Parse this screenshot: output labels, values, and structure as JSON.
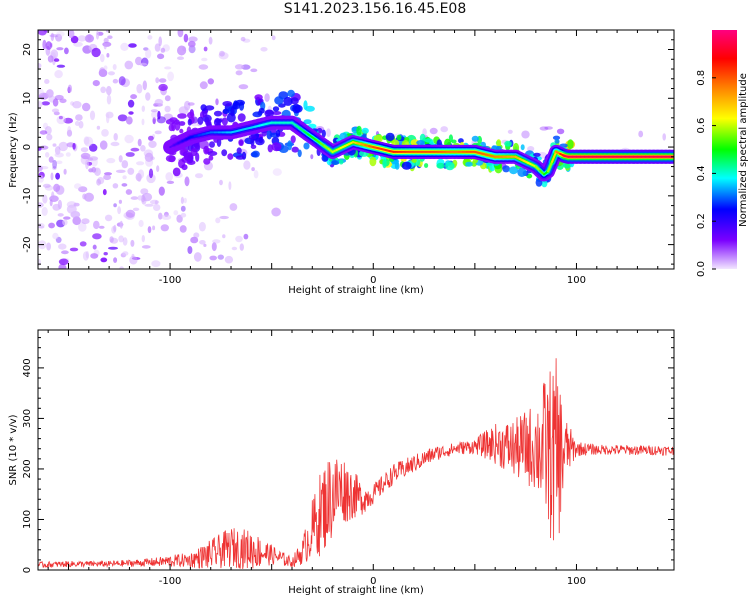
{
  "figure_title": "S141.2023.156.16.45.E08",
  "chart_data": [
    {
      "type": "heatmap",
      "panel": "top",
      "title": "",
      "xlabel": "Height of straight line (km)",
      "ylabel": "Frequency (Hz)",
      "xlim": [
        -165,
        148
      ],
      "ylim": [
        -25,
        24
      ],
      "x_ticks": [
        -100,
        0,
        100
      ],
      "x_tick_labels": [
        "-100",
        "0",
        "100"
      ],
      "y_ticks": [
        -20,
        -10,
        0,
        10,
        20
      ],
      "y_tick_labels": [
        "-20",
        "-10",
        "0",
        "10",
        "20"
      ],
      "colorbar": {
        "label": "Normalized spectral amplitude",
        "range": [
          0,
          1
        ],
        "ticks": [
          0.0,
          0.2,
          0.4,
          0.6,
          0.8
        ],
        "tick_labels": [
          "0.0",
          "0.2",
          "0.4",
          "0.6",
          "0.8"
        ],
        "colors": [
          "#f2e6ff",
          "#7b00ff",
          "#0000ff",
          "#00ffff",
          "#00ff00",
          "#ffff00",
          "#ff8000",
          "#ff0000",
          "#ff0080"
        ]
      },
      "ridge": {
        "name": "dominant frequency",
        "x": [
          -100,
          -90,
          -80,
          -70,
          -60,
          -50,
          -40,
          -30,
          -20,
          -10,
          0,
          10,
          20,
          30,
          40,
          50,
          60,
          70,
          80,
          85,
          90,
          95,
          100,
          110,
          120,
          130,
          140,
          148
        ],
        "y": [
          0,
          2,
          3,
          3,
          4,
          5,
          5,
          2,
          -1,
          1,
          0,
          -1,
          -1,
          -1,
          -1,
          -1,
          -2,
          -2,
          -4,
          -6,
          -1,
          -2,
          -2,
          -2,
          -2,
          -2,
          -2,
          -2
        ],
        "amplitude": [
          0.15,
          0.25,
          0.3,
          0.35,
          0.35,
          0.4,
          0.4,
          0.5,
          0.6,
          0.65,
          0.8,
          0.85,
          0.8,
          0.8,
          0.75,
          0.8,
          0.75,
          0.7,
          0.6,
          0.5,
          0.7,
          0.95,
          0.95,
          0.95,
          0.95,
          0.95,
          0.95,
          0.95
        ]
      }
    },
    {
      "type": "line",
      "panel": "bottom",
      "title": "",
      "xlabel": "Height of straight line (km)",
      "ylabel": "SNR (10 * v/v)",
      "xlim": [
        -165,
        148
      ],
      "ylim": [
        0,
        475
      ],
      "x_ticks": [
        -100,
        0,
        100
      ],
      "x_tick_labels": [
        "-100",
        "0",
        "100"
      ],
      "y_ticks": [
        0,
        100,
        200,
        300,
        400
      ],
      "y_tick_labels": [
        "0",
        "100",
        "200",
        "300",
        "400"
      ],
      "series": [
        {
          "name": "SNR",
          "color": "#ee3333",
          "x": [
            -165,
            -150,
            -130,
            -110,
            -90,
            -80,
            -70,
            -60,
            -50,
            -40,
            -35,
            -30,
            -25,
            -20,
            -15,
            -10,
            -5,
            0,
            5,
            10,
            20,
            30,
            40,
            50,
            60,
            70,
            80,
            85,
            90,
            95,
            100,
            110,
            120,
            130,
            140,
            148
          ],
          "y": [
            10,
            12,
            12,
            15,
            20,
            30,
            45,
            40,
            30,
            15,
            35,
            80,
            120,
            150,
            160,
            150,
            140,
            150,
            170,
            190,
            210,
            230,
            240,
            245,
            250,
            240,
            245,
            240,
            220,
            240,
            240,
            238,
            238,
            237,
            237,
            236
          ],
          "spread": [
            6,
            6,
            6,
            8,
            15,
            30,
            40,
            40,
            20,
            10,
            25,
            60,
            90,
            90,
            70,
            50,
            30,
            20,
            20,
            20,
            18,
            15,
            12,
            15,
            40,
            60,
            90,
            150,
            200,
            60,
            15,
            10,
            10,
            10,
            10,
            10
          ]
        }
      ]
    }
  ]
}
